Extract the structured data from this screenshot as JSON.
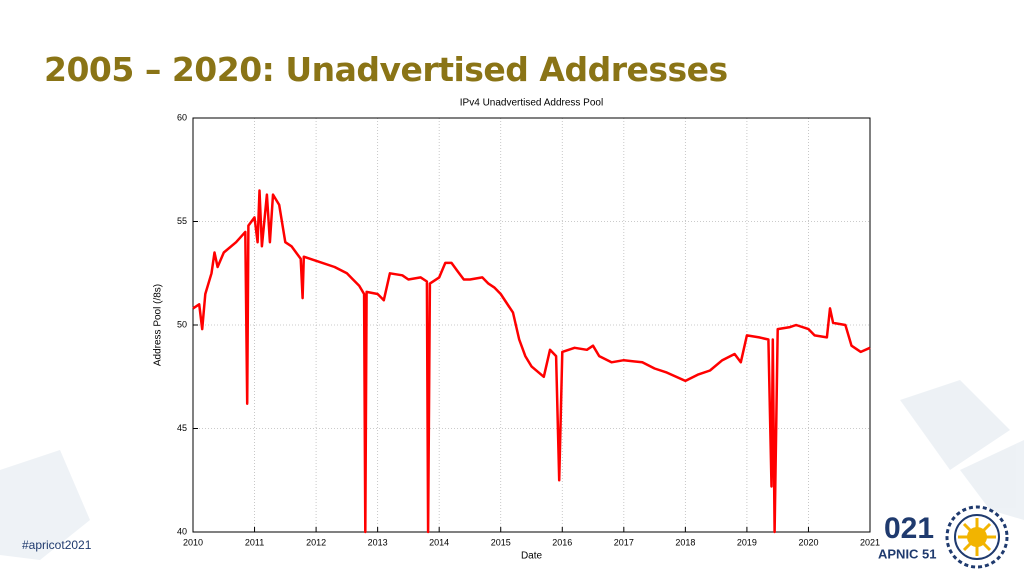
{
  "slide": {
    "title": "2005 – 2020: Unadvertised Addresses",
    "hashtag": "#apricot2021",
    "logo_year": "021",
    "logo_name": "APNIC 51"
  },
  "chart_data": {
    "type": "line",
    "title": "IPv4 Unadvertised Address Pool",
    "x_label": "Date",
    "y_label": "Address Pool (/8s)",
    "x": [
      2010.0,
      2010.1,
      2010.15,
      2010.2,
      2010.3,
      2010.35,
      2010.4,
      2010.5,
      2010.7,
      2010.85,
      2010.88,
      2010.9,
      2011.0,
      2011.05,
      2011.08,
      2011.12,
      2011.2,
      2011.25,
      2011.3,
      2011.4,
      2011.5,
      2011.6,
      2011.75,
      2011.78,
      2011.8,
      2012.0,
      2012.3,
      2012.5,
      2012.6,
      2012.7,
      2012.78,
      2012.8,
      2012.82,
      2013.0,
      2013.1,
      2013.2,
      2013.4,
      2013.5,
      2013.7,
      2013.8,
      2013.82,
      2013.85,
      2014.0,
      2014.1,
      2014.2,
      2014.3,
      2014.4,
      2014.5,
      2014.7,
      2014.8,
      2014.9,
      2015.0,
      2015.2,
      2015.3,
      2015.4,
      2015.5,
      2015.7,
      2015.8,
      2015.9,
      2015.95,
      2016.0,
      2016.2,
      2016.4,
      2016.5,
      2016.6,
      2016.8,
      2017.0,
      2017.3,
      2017.5,
      2017.7,
      2018.0,
      2018.2,
      2018.4,
      2018.6,
      2018.8,
      2018.9,
      2019.0,
      2019.2,
      2019.35,
      2019.4,
      2019.42,
      2019.45,
      2019.5,
      2019.7,
      2019.8,
      2020.0,
      2020.1,
      2020.3,
      2020.35,
      2020.4,
      2020.6,
      2020.7,
      2020.85,
      2021.0
    ],
    "series": [
      {
        "color": "#ff0000",
        "values": [
          50.8,
          51.0,
          49.8,
          51.5,
          52.5,
          53.5,
          52.8,
          53.5,
          54.0,
          54.5,
          46.2,
          54.8,
          55.2,
          54.0,
          56.5,
          53.8,
          56.3,
          54.0,
          56.3,
          55.8,
          54.0,
          53.8,
          53.2,
          51.3,
          53.3,
          53.1,
          52.8,
          52.5,
          52.2,
          51.9,
          51.5,
          40.0,
          51.6,
          51.5,
          51.2,
          52.5,
          52.4,
          52.2,
          52.3,
          52.1,
          40.0,
          52.0,
          52.3,
          53.0,
          53.0,
          52.6,
          52.2,
          52.2,
          52.3,
          52.0,
          51.8,
          51.5,
          50.6,
          49.3,
          48.5,
          48.0,
          47.5,
          48.8,
          48.5,
          42.5,
          48.7,
          48.9,
          48.8,
          49.0,
          48.5,
          48.2,
          48.3,
          48.2,
          47.9,
          47.7,
          47.3,
          47.6,
          47.8,
          48.3,
          48.6,
          48.2,
          49.5,
          49.4,
          49.3,
          42.2,
          49.3,
          40.0,
          49.8,
          49.9,
          50.0,
          49.8,
          49.5,
          49.4,
          50.8,
          50.1,
          50.0,
          49.0,
          48.7,
          48.9
        ]
      }
    ],
    "xlim": [
      2010,
      2021
    ],
    "xticks": [
      2010,
      2011,
      2012,
      2013,
      2014,
      2015,
      2016,
      2017,
      2018,
      2019,
      2020,
      2021
    ],
    "ylim": [
      40,
      60
    ],
    "yticks": [
      40,
      45,
      50,
      55,
      60
    ],
    "grid": true
  }
}
